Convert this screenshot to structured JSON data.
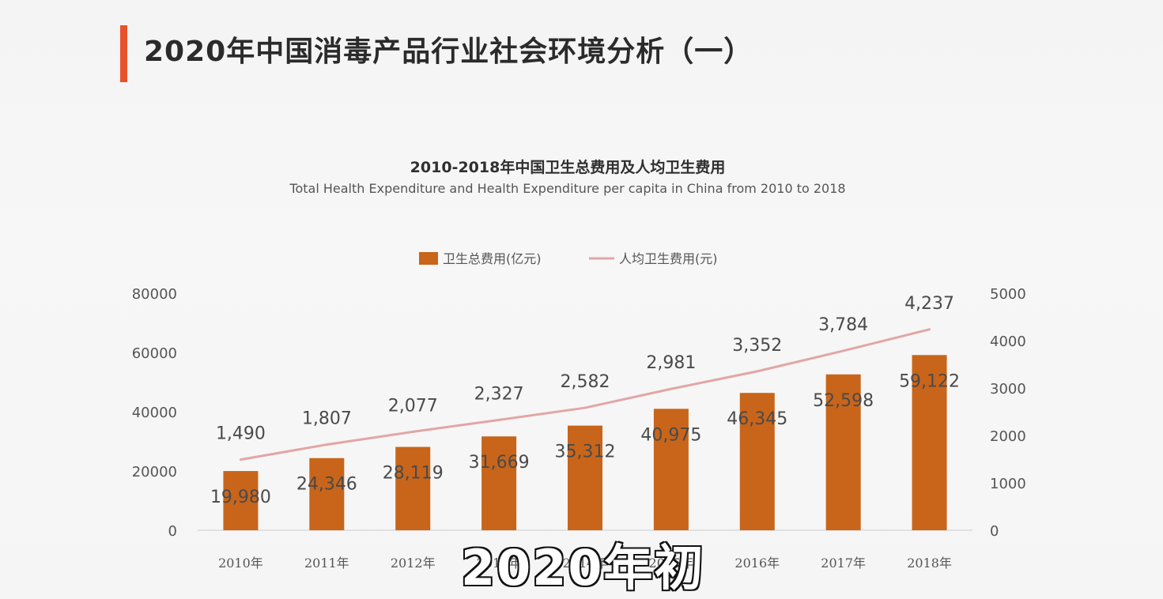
{
  "page": {
    "title": "2020年中国消毒产品行业社会环境分析（一）"
  },
  "caption": "2020年初",
  "chart_data": {
    "type": "bar",
    "title": "2010-2018年中国卫生总费用及人均卫生费用",
    "subtitle": "Total Health Expenditure and Health Expenditure per capita in China from 2010 to 2018",
    "categories": [
      "2010年",
      "2011年",
      "2012年",
      "2013年",
      "2014年",
      "2015年",
      "2016年",
      "2017年",
      "2018年"
    ],
    "series": [
      {
        "name": "卫生总费用(亿元)",
        "type": "bar",
        "axis": "left",
        "values": [
          19980,
          24346,
          28119,
          31669,
          35312,
          40975,
          46345,
          52598,
          59122
        ],
        "labels": [
          "19,980",
          "24,346",
          "28,119",
          "31,669",
          "35,312",
          "40,975",
          "46,345",
          "52,598",
          "59,122"
        ],
        "color": "#c8651a"
      },
      {
        "name": "人均卫生费用(元)",
        "type": "line",
        "axis": "right",
        "values": [
          1490,
          1807,
          2077,
          2327,
          2582,
          2981,
          3352,
          3784,
          4237
        ],
        "labels": [
          "1,490",
          "1,807",
          "2,077",
          "2,327",
          "2,582",
          "2,981",
          "3,352",
          "3,784",
          "4,237"
        ],
        "color": "#e2a6a6"
      }
    ],
    "y_left": {
      "ylim": [
        0,
        80000
      ],
      "ticks": [
        "0",
        "20000",
        "40000",
        "60000",
        "80000"
      ]
    },
    "y_right": {
      "ylim": [
        0,
        5000
      ],
      "ticks": [
        "0",
        "1000",
        "2000",
        "3000",
        "4000",
        "5000"
      ]
    },
    "legend_position": "top-center",
    "grid": false
  }
}
